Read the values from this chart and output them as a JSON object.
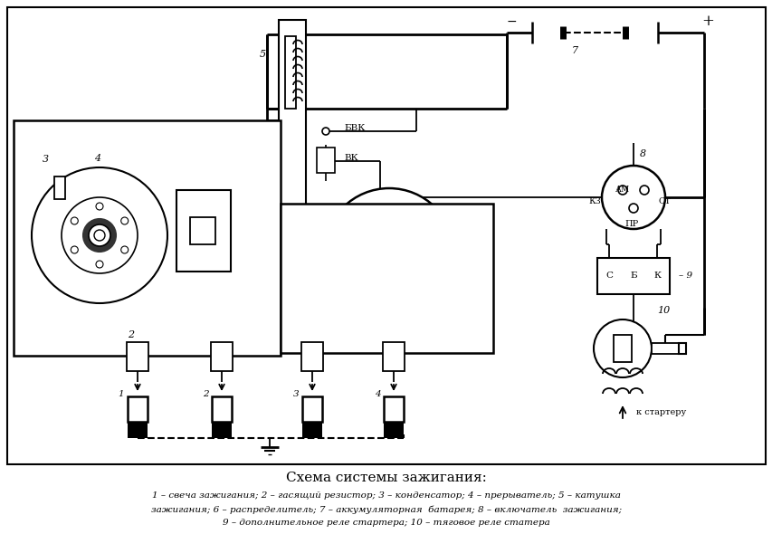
{
  "title": "Схема системы зажигания:",
  "cap1": "1 – свеча зажигания; 2 – гасящий резистор; 3 – конденсатор; 4 – прерыватель; 5 – катушка",
  "cap2": "зажигания; 6 – распределитель; 7 – аккумуляторная  батарея; 8 – включатель  зажигания;",
  "cap3": "9 – дополнительное реле стартера; 10 – тяговое реле статера",
  "bg": "#ffffff",
  "lc": "#000000"
}
